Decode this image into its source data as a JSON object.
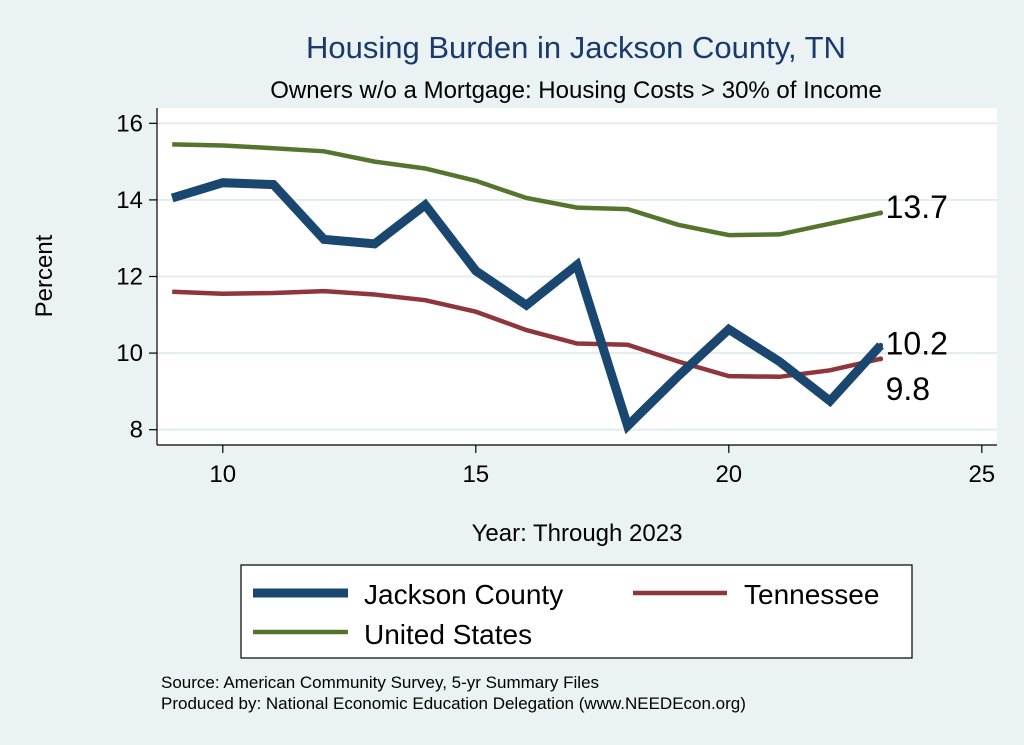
{
  "title": "Housing Burden in Jackson County, TN",
  "subtitle": "Owners w/o a Mortgage: Housing Costs > 30% of Income",
  "xlabel": "Year: Through 2023",
  "ylabel": "Percent",
  "source_line": "Source: American Community Survey, 5-yr Summary Files",
  "produced_line": "Produced by: National Economic Education Delegation (www.NEEDEcon.org)",
  "chart_data": {
    "type": "line",
    "xlim": [
      8.7,
      25.3
    ],
    "ylim": [
      7.6,
      16.4
    ],
    "xticks": [
      10,
      15,
      20,
      25
    ],
    "yticks": [
      8,
      10,
      12,
      14,
      16
    ],
    "grid": true,
    "legend_position": "bottom",
    "x": [
      9,
      10,
      11,
      12,
      13,
      14,
      15,
      16,
      17,
      18,
      19,
      20,
      21,
      22,
      23
    ],
    "series": [
      {
        "name": "Jackson County",
        "color": "#1a476f",
        "width": 9,
        "end_label": "10.2",
        "values": [
          14.05,
          14.45,
          14.4,
          12.97,
          12.85,
          13.87,
          12.15,
          11.25,
          12.3,
          8.1,
          9.4,
          10.62,
          9.78,
          8.75,
          10.2
        ]
      },
      {
        "name": "Tennessee",
        "color": "#90353b",
        "width": 4.5,
        "end_label": "9.8",
        "values": [
          11.6,
          11.55,
          11.57,
          11.62,
          11.53,
          11.38,
          11.08,
          10.6,
          10.25,
          10.22,
          9.78,
          9.4,
          9.38,
          9.55,
          9.85
        ]
      },
      {
        "name": "United States",
        "color": "#55752f",
        "width": 4.5,
        "end_label": "13.7",
        "values": [
          15.45,
          15.42,
          15.35,
          15.27,
          15.0,
          14.82,
          14.5,
          14.05,
          13.8,
          13.76,
          13.35,
          13.08,
          13.1,
          13.38,
          13.66
        ]
      }
    ]
  }
}
